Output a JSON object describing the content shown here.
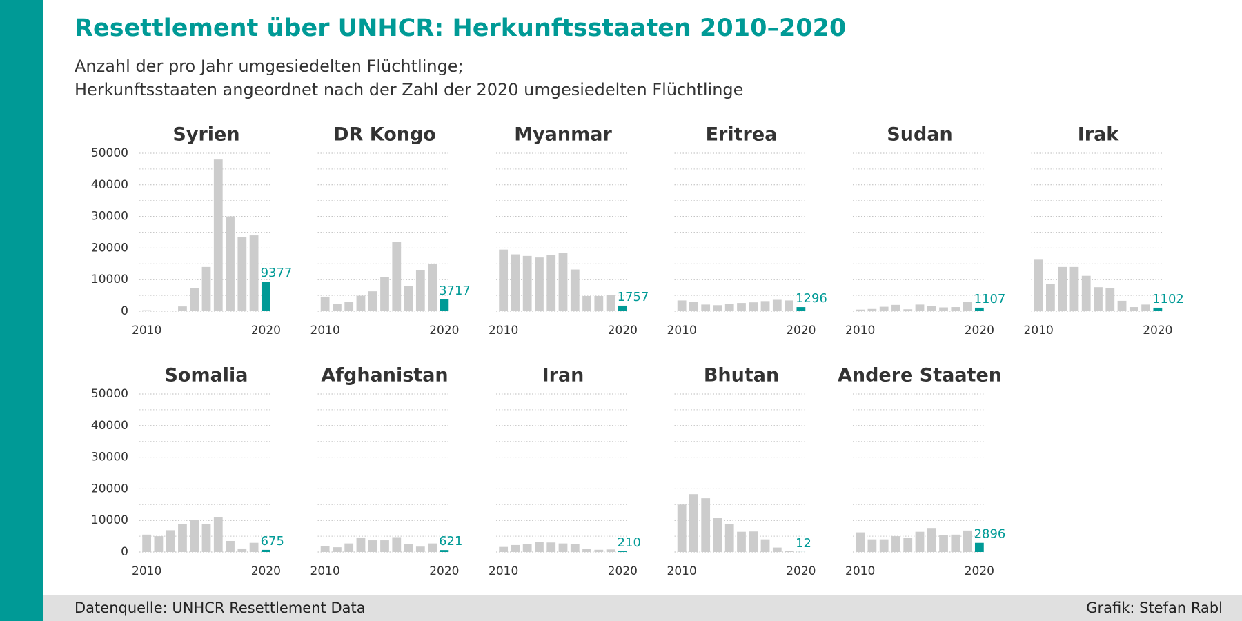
{
  "header": {
    "title": "Resettlement über UNHCR: Herkunftsstaaten 2010–2020",
    "subtitle": [
      "Anzahl der pro Jahr umgesiedelten Flüchtlinge;",
      "Herkunftsstaaten angeordnet nach der Zahl der 2020 umgesiedelten Flüchtlinge"
    ]
  },
  "footer": {
    "source": "Datenquelle: UNHCR Resettlement Data",
    "credit": "Grafik: Stefan Rabl"
  },
  "chart_data": [
    {
      "type": "bar",
      "title": "Syrien",
      "x": [
        2010,
        2011,
        2012,
        2013,
        2014,
        2015,
        2016,
        2017,
        2018,
        2019,
        2020
      ],
      "values": [
        300,
        200,
        100,
        1500,
        7300,
        14000,
        48000,
        30000,
        23500,
        24000,
        9377
      ],
      "color": "#cccccc",
      "highlight_color": "#009a96",
      "xlim": [
        2009.5,
        2020.5
      ],
      "xticks": [
        2010,
        2020
      ],
      "ylim": [
        0,
        50000
      ],
      "yticks": [
        0,
        10000,
        20000,
        30000,
        40000,
        50000
      ],
      "yminorticks": [
        5000,
        15000,
        25000,
        35000,
        45000
      ],
      "grid": true
    },
    {
      "type": "bar",
      "title": "DR Kongo",
      "x": [
        2010,
        2011,
        2012,
        2013,
        2014,
        2015,
        2016,
        2017,
        2018,
        2019,
        2020
      ],
      "values": [
        4600,
        2300,
        2900,
        4900,
        6300,
        10700,
        22000,
        8000,
        13000,
        15000,
        3717
      ],
      "color": "#cccccc",
      "highlight_color": "#009a96",
      "xlim": [
        2009.5,
        2020.5
      ],
      "xticks": [
        2010,
        2020
      ],
      "ylim": [
        0,
        50000
      ],
      "yticks": [
        0,
        10000,
        20000,
        30000,
        40000,
        50000
      ],
      "yminorticks": [
        5000,
        15000,
        25000,
        35000,
        45000
      ],
      "grid": true
    },
    {
      "type": "bar",
      "title": "Myanmar",
      "x": [
        2010,
        2011,
        2012,
        2013,
        2014,
        2015,
        2016,
        2017,
        2018,
        2019,
        2020
      ],
      "values": [
        19500,
        18000,
        17500,
        17000,
        17800,
        18500,
        13200,
        4800,
        4800,
        5200,
        1757
      ],
      "color": "#cccccc",
      "highlight_color": "#009a96",
      "xlim": [
        2009.5,
        2020.5
      ],
      "xticks": [
        2010,
        2020
      ],
      "ylim": [
        0,
        50000
      ],
      "yticks": [
        0,
        10000,
        20000,
        30000,
        40000,
        50000
      ],
      "yminorticks": [
        5000,
        15000,
        25000,
        35000,
        45000
      ],
      "grid": true
    },
    {
      "type": "bar",
      "title": "Eritrea",
      "x": [
        2010,
        2011,
        2012,
        2013,
        2014,
        2015,
        2016,
        2017,
        2018,
        2019,
        2020
      ],
      "values": [
        3400,
        2900,
        2100,
        1900,
        2300,
        2600,
        2800,
        3200,
        3600,
        3400,
        1296
      ],
      "color": "#cccccc",
      "highlight_color": "#009a96",
      "xlim": [
        2009.5,
        2020.5
      ],
      "xticks": [
        2010,
        2020
      ],
      "ylim": [
        0,
        50000
      ],
      "yticks": [
        0,
        10000,
        20000,
        30000,
        40000,
        50000
      ],
      "yminorticks": [
        5000,
        15000,
        25000,
        35000,
        45000
      ],
      "grid": true
    },
    {
      "type": "bar",
      "title": "Sudan",
      "x": [
        2010,
        2011,
        2012,
        2013,
        2014,
        2015,
        2016,
        2017,
        2018,
        2019,
        2020
      ],
      "values": [
        500,
        700,
        1400,
        2000,
        600,
        2100,
        1600,
        1200,
        1300,
        2900,
        1107
      ],
      "color": "#cccccc",
      "highlight_color": "#009a96",
      "xlim": [
        2009.5,
        2020.5
      ],
      "xticks": [
        2010,
        2020
      ],
      "ylim": [
        0,
        50000
      ],
      "yticks": [
        0,
        10000,
        20000,
        30000,
        40000,
        50000
      ],
      "yminorticks": [
        5000,
        15000,
        25000,
        35000,
        45000
      ],
      "grid": true
    },
    {
      "type": "bar",
      "title": "Irak",
      "x": [
        2010,
        2011,
        2012,
        2013,
        2014,
        2015,
        2016,
        2017,
        2018,
        2019,
        2020
      ],
      "values": [
        16300,
        8700,
        14000,
        14000,
        11200,
        7600,
        7400,
        3300,
        1300,
        2100,
        1102
      ],
      "color": "#cccccc",
      "highlight_color": "#009a96",
      "xlim": [
        2009.5,
        2020.5
      ],
      "xticks": [
        2010,
        2020
      ],
      "ylim": [
        0,
        50000
      ],
      "yticks": [
        0,
        10000,
        20000,
        30000,
        40000,
        50000
      ],
      "yminorticks": [
        5000,
        15000,
        25000,
        35000,
        45000
      ],
      "grid": true
    },
    {
      "type": "bar",
      "title": "Somalia",
      "x": [
        2010,
        2011,
        2012,
        2013,
        2014,
        2015,
        2016,
        2017,
        2018,
        2019,
        2020
      ],
      "values": [
        5500,
        5000,
        6900,
        8800,
        10200,
        8800,
        11000,
        3500,
        1100,
        2900,
        675
      ],
      "color": "#cccccc",
      "highlight_color": "#009a96",
      "xlim": [
        2009.5,
        2020.5
      ],
      "xticks": [
        2010,
        2020
      ],
      "ylim": [
        0,
        50000
      ],
      "yticks": [
        0,
        10000,
        20000,
        30000,
        40000,
        50000
      ],
      "yminorticks": [
        5000,
        15000,
        25000,
        35000,
        45000
      ],
      "grid": true
    },
    {
      "type": "bar",
      "title": "Afghanistan",
      "x": [
        2010,
        2011,
        2012,
        2013,
        2014,
        2015,
        2016,
        2017,
        2018,
        2019,
        2020
      ],
      "values": [
        1800,
        1500,
        2700,
        4600,
        3700,
        3700,
        4700,
        2400,
        1700,
        2700,
        621
      ],
      "color": "#cccccc",
      "highlight_color": "#009a96",
      "xlim": [
        2009.5,
        2020.5
      ],
      "xticks": [
        2010,
        2020
      ],
      "ylim": [
        0,
        50000
      ],
      "yticks": [
        0,
        10000,
        20000,
        30000,
        40000,
        50000
      ],
      "yminorticks": [
        5000,
        15000,
        25000,
        35000,
        45000
      ],
      "grid": true
    },
    {
      "type": "bar",
      "title": "Iran",
      "x": [
        2010,
        2011,
        2012,
        2013,
        2014,
        2015,
        2016,
        2017,
        2018,
        2019,
        2020
      ],
      "values": [
        1600,
        2200,
        2400,
        3100,
        3000,
        2700,
        2600,
        1000,
        700,
        800,
        210
      ],
      "color": "#cccccc",
      "highlight_color": "#009a96",
      "xlim": [
        2009.5,
        2020.5
      ],
      "xticks": [
        2010,
        2020
      ],
      "ylim": [
        0,
        50000
      ],
      "yticks": [
        0,
        10000,
        20000,
        30000,
        40000,
        50000
      ],
      "yminorticks": [
        5000,
        15000,
        25000,
        35000,
        45000
      ],
      "grid": true
    },
    {
      "type": "bar",
      "title": "Bhutan",
      "x": [
        2010,
        2011,
        2012,
        2013,
        2014,
        2015,
        2016,
        2017,
        2018,
        2019,
        2020
      ],
      "values": [
        15000,
        18300,
        17000,
        10700,
        8800,
        6400,
        6500,
        4000,
        1400,
        300,
        12
      ],
      "color": "#cccccc",
      "highlight_color": "#009a96",
      "xlim": [
        2009.5,
        2020.5
      ],
      "xticks": [
        2010,
        2020
      ],
      "ylim": [
        0,
        50000
      ],
      "yticks": [
        0,
        10000,
        20000,
        30000,
        40000,
        50000
      ],
      "yminorticks": [
        5000,
        15000,
        25000,
        35000,
        45000
      ],
      "grid": true
    },
    {
      "type": "bar",
      "title": "Andere Staaten",
      "x": [
        2010,
        2011,
        2012,
        2013,
        2014,
        2015,
        2016,
        2017,
        2018,
        2019,
        2020
      ],
      "values": [
        6200,
        4000,
        4000,
        5000,
        4500,
        6400,
        7600,
        5300,
        5500,
        6800,
        2896
      ],
      "color": "#cccccc",
      "highlight_color": "#009a96",
      "xlim": [
        2009.5,
        2020.5
      ],
      "xticks": [
        2010,
        2020
      ],
      "ylim": [
        0,
        50000
      ],
      "yticks": [
        0,
        10000,
        20000,
        30000,
        40000,
        50000
      ],
      "yminorticks": [
        5000,
        15000,
        25000,
        35000,
        45000
      ],
      "grid": true
    }
  ]
}
